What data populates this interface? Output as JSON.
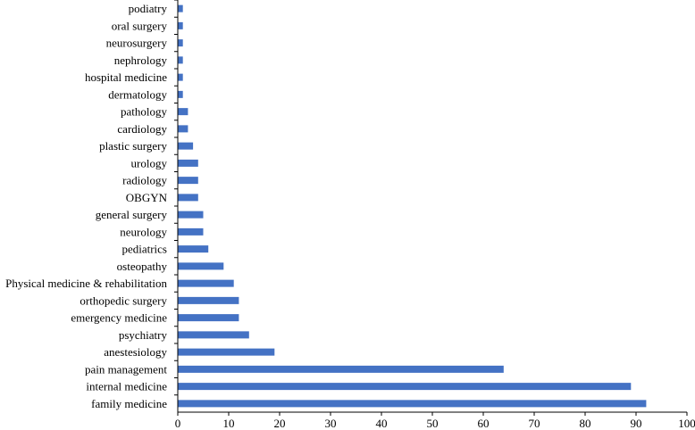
{
  "chart_data": {
    "type": "bar",
    "orientation": "horizontal",
    "categories": [
      "podiatry",
      "oral surgery",
      "neurosurgery",
      "nephrology",
      "hospital medicine",
      "dermatology",
      "pathology",
      "cardiology",
      "plastic surgery",
      "urology",
      "radiology",
      "OBGYN",
      "general surgery",
      "neurology",
      "pediatrics",
      "osteopathy",
      "Physical medicine & rehabilitation",
      "orthopedic surgery",
      "emergency medicine",
      "psychiatry",
      "anestesiology",
      "pain management",
      "internal medicine",
      "family medicine"
    ],
    "values": [
      1,
      1,
      1,
      1,
      1,
      1,
      2,
      2,
      3,
      4,
      4,
      4,
      5,
      5,
      6,
      9,
      11,
      12,
      12,
      14,
      19,
      64,
      89,
      92
    ],
    "xlim": [
      0,
      100
    ],
    "xticks": [
      0,
      10,
      20,
      30,
      40,
      50,
      60,
      70,
      80,
      90,
      100
    ],
    "bar_color": "#4472C4",
    "grid": false,
    "legend": "none"
  }
}
